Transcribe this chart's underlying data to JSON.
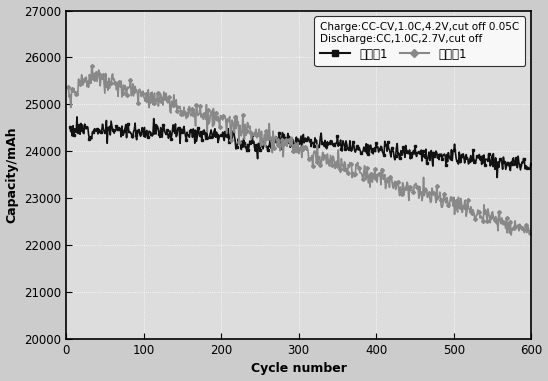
{
  "title": "",
  "xlabel": "Cycle number",
  "ylabel": "Capacity/mAh",
  "xlim": [
    0,
    600
  ],
  "ylim": [
    20000,
    27000
  ],
  "xticks": [
    0,
    100,
    200,
    300,
    400,
    500,
    600
  ],
  "yticks": [
    20000,
    21000,
    22000,
    23000,
    24000,
    25000,
    26000,
    27000
  ],
  "legend_text1": "Charge:CC-CV,1.0C,4.2V,cut off 0.05C",
  "legend_text2": "Discharge:CC,1.0C,2.7V,cut off",
  "series1_label": "实施例1",
  "series2_label": "对比例1",
  "black_color": "#111111",
  "gray_color": "#888888",
  "bg_color": "#cccccc",
  "plot_bg": "#dddddd",
  "grid_color": "#ffffff",
  "figsize": [
    5.48,
    3.81
  ],
  "dpi": 100
}
